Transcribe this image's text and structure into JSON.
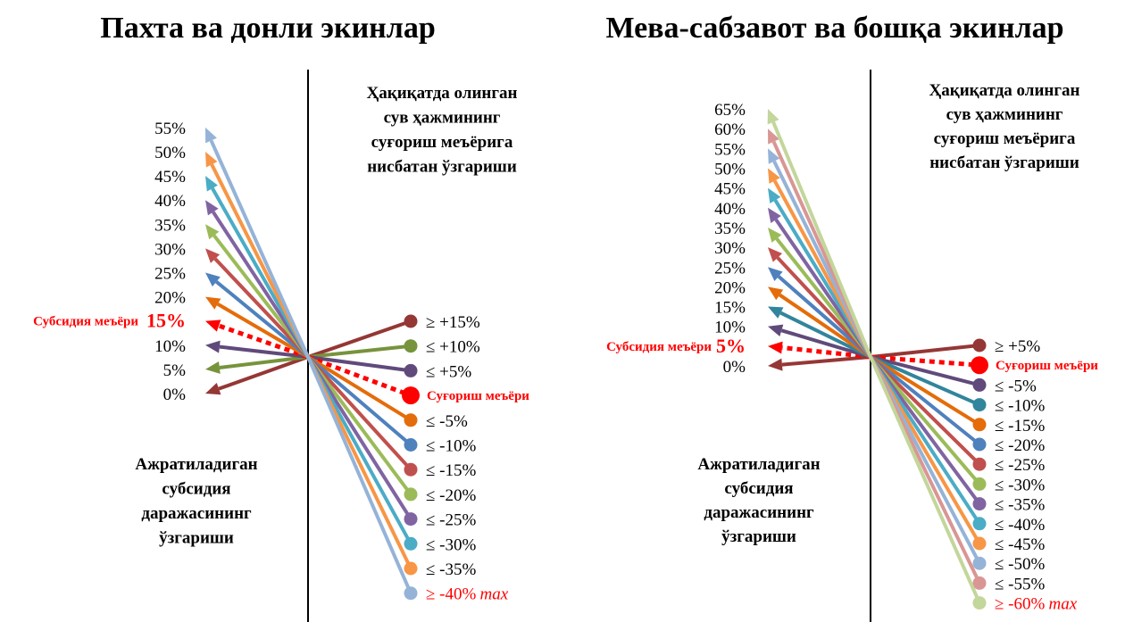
{
  "panels": [
    {
      "title": "Пахта ва донли экинлар",
      "subtitle": [
        "Ҳақиқатда олинган",
        "сув ҳажмининг",
        "суғориш меъёрига",
        "нисбатан ўзгариши"
      ],
      "bottom_label": [
        "Ажратиладиган",
        "субсидия",
        "даражасининг",
        "ўзгариши"
      ],
      "subsidy_label": "Субсидия меъёри",
      "max_label": "max",
      "pairs": [
        {
          "level": "0%",
          "change": "≥ +15%",
          "color": "#953735"
        },
        {
          "level": "5%",
          "change": "≤ +10%",
          "color": "#77933c"
        },
        {
          "level": "10%",
          "change": "≤ +5%",
          "color": "#604a7b"
        },
        {
          "level": "15%",
          "change": "Суғориш меъёри",
          "color": "#ff0000",
          "style": "dotted"
        },
        {
          "level": "20%",
          "change": "≤ -5%",
          "color": "#e46c0a"
        },
        {
          "level": "25%",
          "change": "≤ -10%",
          "color": "#4f81bd"
        },
        {
          "level": "30%",
          "change": "≤ -15%",
          "color": "#c0504d"
        },
        {
          "level": "35%",
          "change": "≤ -20%",
          "color": "#9bbb59"
        },
        {
          "level": "40%",
          "change": "≤ -25%",
          "color": "#8064a2"
        },
        {
          "level": "45%",
          "change": "≤ -30%",
          "color": "#4bacc6"
        },
        {
          "level": "50%",
          "change": "≤ -35%",
          "color": "#f79646"
        },
        {
          "level": "55%",
          "change": "≥ -40%",
          "color": "#95b3d7"
        }
      ]
    },
    {
      "title": "Мева-сабзавот ва бошқа экинлар",
      "subtitle": [
        "Ҳақиқатда олинган",
        "сув ҳажмининг",
        "суғориш меъёрига",
        "нисбатан ўзгариши"
      ],
      "bottom_label": [
        "Ажратиладиган",
        "субсидия",
        "даражасининг",
        "ўзгариши"
      ],
      "subsidy_label": "Субсидия меъёри",
      "max_label": "max",
      "pairs": [
        {
          "level": "0%",
          "change": "≥ +5%",
          "color": "#953735"
        },
        {
          "level": "5%",
          "change": "Суғориш меъёри",
          "color": "#ff0000",
          "style": "dotted"
        },
        {
          "level": "10%",
          "change": "≤ -5%",
          "color": "#604a7b"
        },
        {
          "level": "15%",
          "change": "≤ -10%",
          "color": "#31859c"
        },
        {
          "level": "20%",
          "change": "≤ -15%",
          "color": "#e46c0a"
        },
        {
          "level": "25%",
          "change": "≤ -20%",
          "color": "#4f81bd"
        },
        {
          "level": "30%",
          "change": "≤ -25%",
          "color": "#c0504d"
        },
        {
          "level": "35%",
          "change": "≤ -30%",
          "color": "#9bbb59"
        },
        {
          "level": "40%",
          "change": "≤ -35%",
          "color": "#8064a2"
        },
        {
          "level": "45%",
          "change": "≤ -40%",
          "color": "#4bacc6"
        },
        {
          "level": "50%",
          "change": "≤ -45%",
          "color": "#f79646"
        },
        {
          "level": "55%",
          "change": "≤ -50%",
          "color": "#95b3d7"
        },
        {
          "level": "60%",
          "change": "≤ -55%",
          "color": "#d99694"
        },
        {
          "level": "65%",
          "change": "≥ -60%",
          "color": "#c3d69b"
        }
      ]
    }
  ]
}
